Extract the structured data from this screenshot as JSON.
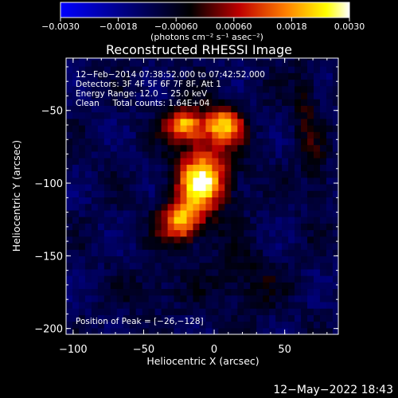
{
  "chart_data": {
    "type": "heatmap",
    "title": "Reconstructed RHESSI Image",
    "xlabel": "Heliocentric X (arcsec)",
    "ylabel": "Heliocentric Y (arcsec)",
    "xlim": [
      -105,
      88
    ],
    "ylim": [
      -204,
      -14
    ],
    "x_ticks": [
      -100,
      -50,
      0,
      50
    ],
    "x_tick_labels": [
      "−100",
      "−50",
      "0",
      "50"
    ],
    "y_ticks": [
      -50,
      -100,
      -150,
      -200
    ],
    "y_tick_labels": [
      "−50",
      "−100",
      "−150",
      "−200"
    ],
    "colorbar": {
      "range": [
        -0.003,
        0.003
      ],
      "ticks": [
        -0.003,
        -0.0018,
        -0.0006,
        0.0006,
        0.0018,
        0.003
      ],
      "tick_labels": [
        "−0.0030",
        "−0.0018",
        "−0.00060",
        "0.00060",
        "0.0018",
        "0.0030"
      ],
      "units": "(photons cm⁻² s⁻¹ asec⁻²)",
      "colors": [
        "#0000ff",
        "#000000",
        "#c00000",
        "#ff8000",
        "#ffff00",
        "#ffffff"
      ]
    },
    "annotations": [
      "12−Feb−2014 07:38:52.000 to 07:42:52.000",
      "Detectors: 3F 4F 5F 6F 7F 8F, Att 1",
      "Energy Range: 12.0 − 25.0 keV",
      "Clean     Total counts: 1.64E+04"
    ],
    "peak_label": "Position of Peak = [−26,−128]",
    "peak": [
      -26,
      -128
    ],
    "sources": [
      {
        "x": -24,
        "y": -62,
        "sx": 9,
        "sy": 7,
        "amp": 0.0028
      },
      {
        "x": 5,
        "y": -62,
        "sx": 9,
        "sy": 8,
        "amp": 0.0027
      },
      {
        "x": -12,
        "y": -102,
        "sx": 10,
        "sy": 11,
        "amp": 0.0028
      },
      {
        "x": -26,
        "y": -128,
        "sx": 10,
        "sy": 10,
        "amp": 0.003
      },
      {
        "x": -8,
        "y": -90,
        "sx": 16,
        "sy": 26,
        "amp": 0.0016
      },
      {
        "x": 62,
        "y": -50,
        "sx": 6,
        "sy": 22,
        "amp": 0.0008
      },
      {
        "x": 70,
        "y": -95,
        "sx": 6,
        "sy": 20,
        "amp": 0.0007
      },
      {
        "x": 20,
        "y": -170,
        "sx": 18,
        "sy": 14,
        "amp": 0.0007
      },
      {
        "x": -45,
        "y": -175,
        "sx": 14,
        "sy": 10,
        "amp": 0.0005
      }
    ],
    "background": -0.0011
  },
  "footer_date": "12−May−2022 18:43"
}
